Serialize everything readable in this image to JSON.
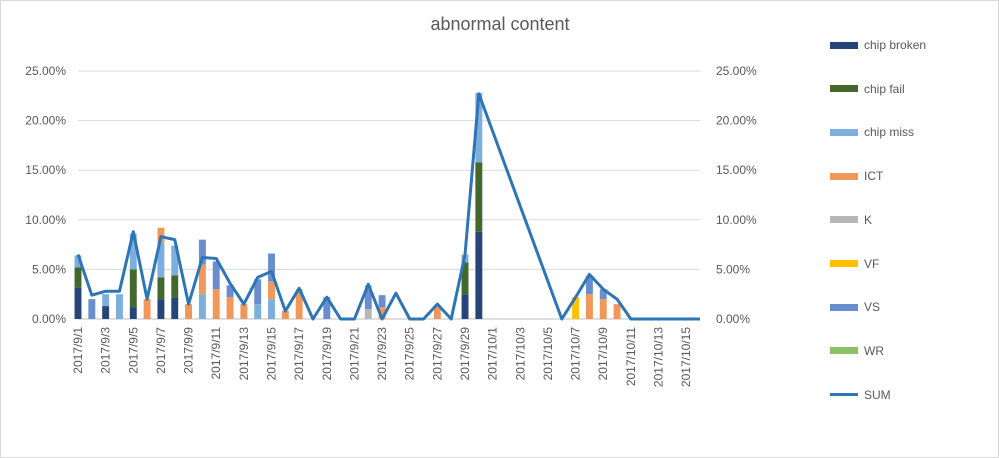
{
  "chart_data": {
    "type": "bar",
    "title": "abnormal content",
    "xlabel": "",
    "ylabel": "",
    "ylim": [
      0,
      0.25
    ],
    "y_ticks": [
      "0.00%",
      "5.00%",
      "10.00%",
      "15.00%",
      "20.00%",
      "25.00%"
    ],
    "secondary_y_ticks": [
      "0.00%",
      "5.00%",
      "10.00%",
      "15.00%",
      "20.00%",
      "25.00%"
    ],
    "grid": true,
    "legend_position": "right",
    "categories": [
      "2017/9/1",
      "2017/9/2",
      "2017/9/3",
      "2017/9/4",
      "2017/9/5",
      "2017/9/6",
      "2017/9/7",
      "2017/9/8",
      "2017/9/9",
      "2017/9/10",
      "2017/9/11",
      "2017/9/12",
      "2017/9/13",
      "2017/9/14",
      "2017/9/15",
      "2017/9/16",
      "2017/9/17",
      "2017/9/18",
      "2017/9/19",
      "2017/9/20",
      "2017/9/21",
      "2017/9/22",
      "2017/9/23",
      "2017/9/24",
      "2017/9/25",
      "2017/9/26",
      "2017/9/27",
      "2017/9/28",
      "2017/9/29",
      "2017/9/30",
      "2017/10/1",
      "2017/10/2",
      "2017/10/3",
      "2017/10/4",
      "2017/10/5",
      "2017/10/6",
      "2017/10/7",
      "2017/10/8",
      "2017/10/9",
      "2017/10/10",
      "2017/10/11",
      "2017/10/12",
      "2017/10/13",
      "2017/10/14",
      "2017/10/15",
      "2017/10/16"
    ],
    "x_tick_labels": [
      "2017/9/1",
      "2017/9/3",
      "2017/9/5",
      "2017/9/7",
      "2017/9/9",
      "2017/9/11",
      "2017/9/13",
      "2017/9/15",
      "2017/9/17",
      "2017/9/19",
      "2017/9/21",
      "2017/9/23",
      "2017/9/25",
      "2017/9/27",
      "2017/9/29",
      "2017/10/1",
      "2017/10/3",
      "2017/10/5",
      "2017/10/7",
      "2017/10/9",
      "2017/10/11",
      "2017/10/13",
      "2017/10/15"
    ],
    "series": [
      {
        "name": "chip broken",
        "type": "bar",
        "color": "#264478",
        "values": [
          0.032,
          0,
          0.013,
          0,
          0.012,
          0,
          0.02,
          0.022,
          0,
          0,
          0,
          0,
          0,
          0,
          0,
          0,
          0,
          0,
          0,
          0,
          0,
          0,
          0,
          0,
          0,
          0,
          0,
          0,
          0.025,
          0.088,
          0,
          0,
          0,
          0,
          0,
          0,
          0,
          0,
          0,
          0,
          0,
          0,
          0,
          0,
          0,
          0
        ]
      },
      {
        "name": "chip fail",
        "type": "bar",
        "color": "#43682b",
        "values": [
          0.02,
          0,
          0,
          0,
          0.038,
          0,
          0.022,
          0.022,
          0,
          0,
          0,
          0,
          0,
          0,
          0,
          0,
          0,
          0,
          0,
          0,
          0,
          0,
          0,
          0,
          0,
          0,
          0,
          0,
          0.032,
          0.07,
          0,
          0,
          0,
          0,
          0,
          0,
          0,
          0,
          0,
          0,
          0,
          0,
          0,
          0,
          0,
          0
        ]
      },
      {
        "name": "chip miss",
        "type": "bar",
        "color": "#7cafdd",
        "values": [
          0.012,
          0,
          0.012,
          0.025,
          0.036,
          0,
          0.035,
          0.03,
          0,
          0.025,
          0,
          0,
          0,
          0.015,
          0.02,
          0,
          0,
          0,
          0,
          0,
          0,
          0,
          0,
          0,
          0,
          0,
          0,
          0,
          0.008,
          0.07,
          0,
          0,
          0,
          0,
          0,
          0,
          0,
          0,
          0,
          0,
          0,
          0,
          0,
          0,
          0,
          0
        ]
      },
      {
        "name": "ICT",
        "type": "bar",
        "color": "#f1975a",
        "values": [
          0,
          0,
          0,
          0,
          0,
          0.02,
          0.015,
          0,
          0.015,
          0.03,
          0.03,
          0.022,
          0.015,
          0,
          0.018,
          0.008,
          0.025,
          0,
          0,
          0,
          0,
          0,
          0.012,
          0,
          0,
          0,
          0.012,
          0,
          0,
          0,
          0,
          0,
          0,
          0,
          0,
          0,
          0,
          0.025,
          0.02,
          0.015,
          0,
          0,
          0,
          0,
          0,
          0
        ]
      },
      {
        "name": "K",
        "type": "bar",
        "color": "#b7b7b7",
        "values": [
          0,
          0,
          0,
          0,
          0,
          0,
          0,
          0,
          0,
          0,
          0,
          0,
          0,
          0,
          0,
          0,
          0,
          0,
          0,
          0,
          0,
          0.01,
          0,
          0,
          0,
          0,
          0,
          0,
          0,
          0,
          0,
          0,
          0,
          0,
          0,
          0,
          0,
          0,
          0,
          0,
          0,
          0,
          0,
          0,
          0,
          0
        ]
      },
      {
        "name": "VF",
        "type": "bar",
        "color": "#ffc000",
        "values": [
          0,
          0,
          0,
          0,
          0,
          0,
          0,
          0,
          0,
          0,
          0,
          0,
          0,
          0,
          0,
          0,
          0,
          0,
          0,
          0,
          0,
          0,
          0,
          0,
          0,
          0,
          0,
          0,
          0,
          0,
          0,
          0,
          0,
          0,
          0,
          0,
          0.022,
          0,
          0,
          0,
          0,
          0,
          0,
          0,
          0,
          0
        ]
      },
      {
        "name": "VS",
        "type": "bar",
        "color": "#698ed0",
        "values": [
          0,
          0.02,
          0,
          0,
          0,
          0,
          0,
          0,
          0,
          0.025,
          0.028,
          0.012,
          0,
          0.025,
          0.028,
          0,
          0,
          0,
          0.022,
          0,
          0,
          0.02,
          0.012,
          0,
          0,
          0,
          0,
          0,
          0,
          0,
          0,
          0,
          0,
          0,
          0,
          0,
          0,
          0.018,
          0.01,
          0,
          0,
          0,
          0,
          0,
          0,
          0
        ]
      },
      {
        "name": "WR",
        "type": "bar",
        "color": "#8cc168",
        "values": [
          0,
          0,
          0,
          0,
          0,
          0,
          0,
          0,
          0,
          0,
          0,
          0,
          0,
          0,
          0,
          0,
          0.005,
          0,
          0,
          0,
          0,
          0.004,
          0,
          0,
          0,
          0,
          0,
          0,
          0,
          0,
          0,
          0,
          0,
          0,
          0,
          0,
          0,
          0,
          0,
          0,
          0,
          0,
          0,
          0,
          0,
          0
        ]
      },
      {
        "name": "SUM",
        "type": "line",
        "color": "#2e75b6",
        "values": [
          0.065,
          0.024,
          0.028,
          0.028,
          0.088,
          0.02,
          0.083,
          0.08,
          0.015,
          0.062,
          0.061,
          0.036,
          0.015,
          0.042,
          0.048,
          0.008,
          0.031,
          0,
          0.022,
          0,
          0,
          0.035,
          0,
          0.026,
          0,
          0,
          0.015,
          0,
          0.065,
          0.227,
          null,
          null,
          null,
          null,
          null,
          0,
          0.022,
          0.045,
          0.03,
          0.02,
          0,
          0,
          0,
          0,
          0,
          0
        ]
      }
    ]
  }
}
